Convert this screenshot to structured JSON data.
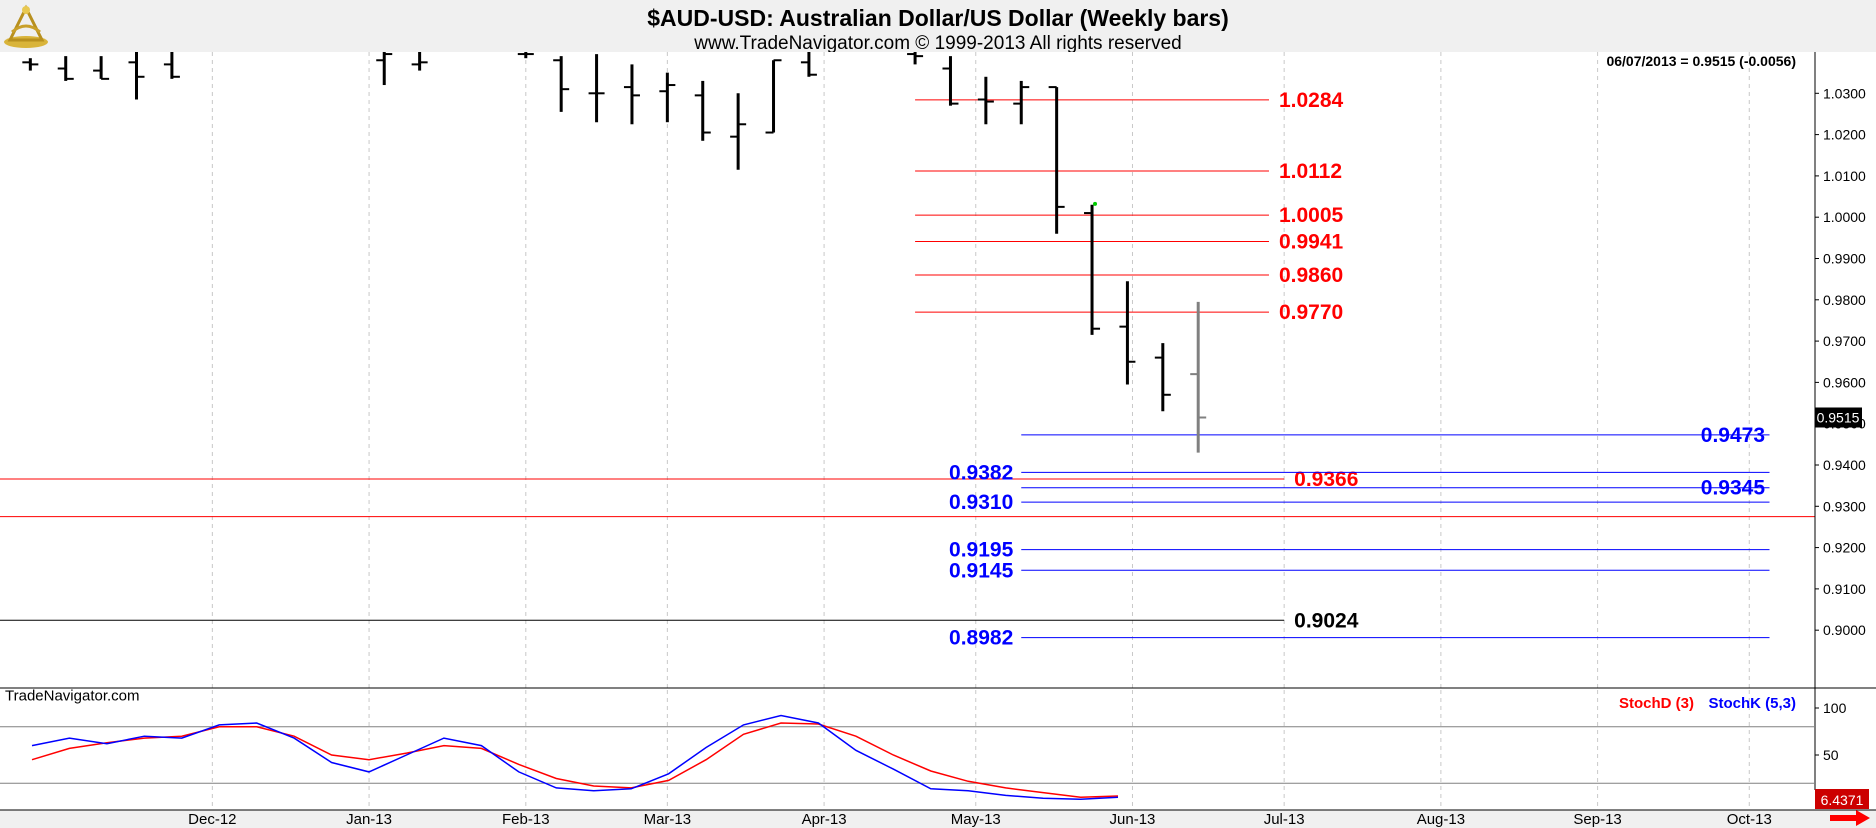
{
  "header": {
    "title": "$AUD-USD:  Australian Dollar/US Dollar  (Weekly bars)",
    "subtitle": "www.TradeNavigator.com © 1999-2013 All rights reserved",
    "date_readout": "06/07/2013 = 0.9515 (-0.0056)",
    "logo_icon": "sextant-logo-icon"
  },
  "watermark": "TradeNavigator.com",
  "colors": {
    "red": "#ff0000",
    "blue": "#0000ff",
    "black": "#000000",
    "gray": "#808080",
    "grid": "#c8c8c8",
    "axis_bg": "#f0f0f0"
  },
  "chart_data": [
    {
      "type": "bar",
      "title": "$AUD-USD:  Australian Dollar/US Dollar  (Weekly bars)",
      "ylim": [
        0.886,
        1.04
      ],
      "y_ticks": [
        "1.0300",
        "1.0200",
        "1.0100",
        "1.0000",
        "0.9900",
        "0.9800",
        "0.9700",
        "0.9600",
        "0.9500",
        "0.9400",
        "0.9300",
        "0.9200",
        "0.9100",
        "0.9000"
      ],
      "x_ticks": [
        "Dec-12",
        "Jan-13",
        "Feb-13",
        "Mar-13",
        "Apr-13",
        "May-13",
        "Jun-13",
        "Jul-13",
        "Aug-13",
        "Sep-13",
        "Oct-13"
      ],
      "x_tick_dates": [
        "2012-12-01",
        "2013-01-01",
        "2013-02-01",
        "2013-03-01",
        "2013-04-01",
        "2013-05-01",
        "2013-06-01",
        "2013-07-01",
        "2013-08-01",
        "2013-09-01",
        "2013-10-01"
      ],
      "x_range": [
        "2012-10-20",
        "2013-10-14"
      ],
      "last_price": "0.9515",
      "last_value": 0.9515,
      "ohlc": [
        {
          "date": "2012-10-26",
          "open": 1.0375,
          "high": 1.0385,
          "low": 1.0355,
          "close": 1.037
        },
        {
          "date": "2012-11-02",
          "open": 1.036,
          "high": 1.039,
          "low": 1.033,
          "close": 1.0335
        },
        {
          "date": "2012-11-09",
          "open": 1.0355,
          "high": 1.039,
          "low": 1.0335,
          "close": 1.0335
        },
        {
          "date": "2012-11-16",
          "open": 1.0375,
          "high": 1.04,
          "low": 1.0285,
          "close": 1.034
        },
        {
          "date": "2012-11-23",
          "open": 1.037,
          "high": 1.04,
          "low": 1.0335,
          "close": 1.034
        },
        {
          "date": "2013-01-04",
          "open": 1.038,
          "high": 1.04,
          "low": 1.032,
          "close": 1.0395
        },
        {
          "date": "2013-01-11",
          "open": 1.037,
          "high": 1.04,
          "low": 1.0355,
          "close": 1.0375
        },
        {
          "date": "2013-02-01",
          "open": 1.0395,
          "high": 1.04,
          "low": 1.0385,
          "close": 1.0395
        },
        {
          "date": "2013-02-08",
          "open": 1.038,
          "high": 1.039,
          "low": 1.0255,
          "close": 1.031
        },
        {
          "date": "2013-02-15",
          "open": 1.03,
          "high": 1.0395,
          "low": 1.023,
          "close": 1.03
        },
        {
          "date": "2013-02-22",
          "open": 1.0315,
          "high": 1.037,
          "low": 1.0225,
          "close": 1.0295
        },
        {
          "date": "2013-03-01",
          "open": 1.0305,
          "high": 1.035,
          "low": 1.023,
          "close": 1.032
        },
        {
          "date": "2013-03-08",
          "open": 1.0295,
          "high": 1.033,
          "low": 1.0185,
          "close": 1.0205
        },
        {
          "date": "2013-03-15",
          "open": 1.0195,
          "high": 1.03,
          "low": 1.0115,
          "close": 1.0225
        },
        {
          "date": "2013-03-22",
          "open": 1.0205,
          "high": 1.038,
          "low": 1.0205,
          "close": 1.038
        },
        {
          "date": "2013-03-29",
          "open": 1.0375,
          "high": 1.04,
          "low": 1.034,
          "close": 1.0345
        },
        {
          "date": "2013-04-19",
          "open": 1.0395,
          "high": 1.04,
          "low": 1.037,
          "close": 1.039
        },
        {
          "date": "2013-04-26",
          "open": 1.036,
          "high": 1.039,
          "low": 1.027,
          "close": 1.0275
        },
        {
          "date": "2013-05-03",
          "open": 1.0285,
          "high": 1.034,
          "low": 1.0225,
          "close": 1.028
        },
        {
          "date": "2013-05-10",
          "open": 1.0275,
          "high": 1.033,
          "low": 1.0225,
          "close": 1.0315
        },
        {
          "date": "2013-05-17",
          "open": 1.0315,
          "high": 1.0315,
          "low": 0.996,
          "close": 1.0025
        },
        {
          "date": "2013-05-24",
          "open": 1.001,
          "high": 1.003,
          "low": 0.9715,
          "close": 0.973
        },
        {
          "date": "2013-05-31",
          "open": 0.9735,
          "high": 0.9845,
          "low": 0.9595,
          "close": 0.965
        },
        {
          "date": "2013-06-07",
          "open": 0.966,
          "high": 0.9695,
          "low": 0.953,
          "close": 0.957
        }
      ],
      "current_bar": {
        "date": "2013-06-14",
        "open": 0.962,
        "high": 0.9795,
        "low": 0.943,
        "close": 0.9515
      },
      "current_bar_high_mark": {
        "date": "2013-05-24",
        "value": 1.0025
      },
      "levels": [
        {
          "value": 1.0284,
          "label": "1.0284",
          "color": "red",
          "from": "2013-04-19",
          "to": "2013-06-28",
          "label_side": "right"
        },
        {
          "value": 1.0112,
          "label": "1.0112",
          "color": "red",
          "from": "2013-04-19",
          "to": "2013-06-28",
          "label_side": "right"
        },
        {
          "value": 1.0005,
          "label": "1.0005",
          "color": "red",
          "from": "2013-04-19",
          "to": "2013-06-28",
          "label_side": "right"
        },
        {
          "value": 0.9941,
          "label": "0.9941",
          "color": "red",
          "from": "2013-04-19",
          "to": "2013-06-28",
          "label_side": "right"
        },
        {
          "value": 0.986,
          "label": "0.9860",
          "color": "red",
          "from": "2013-04-19",
          "to": "2013-06-28",
          "label_side": "right"
        },
        {
          "value": 0.977,
          "label": "0.9770",
          "color": "red",
          "from": "2013-04-19",
          "to": "2013-06-28",
          "label_side": "right"
        },
        {
          "value": 0.9366,
          "label": "0.9366",
          "color": "red",
          "from": "2012-10-20",
          "to": "2013-07-01",
          "label_side": "right"
        },
        {
          "value": 0.9275,
          "label": "",
          "color": "red",
          "from": "2012-10-20",
          "to": "2013-10-14",
          "label_side": "none"
        },
        {
          "value": 0.9024,
          "label": "0.9024",
          "color": "black",
          "from": "2012-10-20",
          "to": "2013-07-01",
          "label_side": "right"
        },
        {
          "value": 0.9473,
          "label": "0.9473",
          "color": "blue",
          "from": "2013-05-10",
          "to": "2013-10-05",
          "label_side": "far-right"
        },
        {
          "value": 0.9382,
          "label": "0.9382",
          "color": "blue",
          "from": "2013-05-10",
          "to": "2013-10-05",
          "label_side": "left"
        },
        {
          "value": 0.9345,
          "label": "0.9345",
          "color": "blue",
          "from": "2013-05-10",
          "to": "2013-10-05",
          "label_side": "far-right"
        },
        {
          "value": 0.931,
          "label": "0.9310",
          "color": "blue",
          "from": "2013-05-10",
          "to": "2013-10-05",
          "label_side": "left"
        },
        {
          "value": 0.9195,
          "label": "0.9195",
          "color": "blue",
          "from": "2013-05-10",
          "to": "2013-10-05",
          "label_side": "left"
        },
        {
          "value": 0.9145,
          "label": "0.9145",
          "color": "blue",
          "from": "2013-05-10",
          "to": "2013-10-05",
          "label_side": "left"
        },
        {
          "value": 0.8982,
          "label": "0.8982",
          "color": "blue",
          "from": "2013-05-10",
          "to": "2013-10-05",
          "label_side": "left"
        }
      ],
      "grid": "vertical-dashed"
    },
    {
      "type": "line",
      "ylim": [
        0,
        100
      ],
      "y_ticks": [
        "100",
        "50"
      ],
      "reference_lines": [
        80,
        20
      ],
      "last_value_label": "6.4371",
      "legend_placement": "top-right",
      "series": [
        {
          "name": "StochD (3)",
          "color": "red",
          "values": [
            {
              "date": "2012-10-26",
              "value": 45
            },
            {
              "date": "2012-11-09",
              "value": 57
            },
            {
              "date": "2012-11-23",
              "value": 63
            },
            {
              "date": "2012-12-07",
              "value": 68
            },
            {
              "date": "2012-12-21",
              "value": 70
            },
            {
              "date": "2013-01-04",
              "value": 80
            },
            {
              "date": "2013-01-18",
              "value": 80
            },
            {
              "date": "2013-02-01",
              "value": 70
            },
            {
              "date": "2013-02-15",
              "value": 50
            },
            {
              "date": "2013-03-01",
              "value": 45
            },
            {
              "date": "2013-03-15",
              "value": 52
            },
            {
              "date": "2013-03-29",
              "value": 60
            },
            {
              "date": "2013-04-12",
              "value": 57
            },
            {
              "date": "2013-04-26",
              "value": 40
            },
            {
              "date": "2013-05-10",
              "value": 25
            },
            {
              "date": "2013-05-24",
              "value": 17
            },
            {
              "date": "2013-06-07",
              "value": 15
            },
            {
              "date": "2013-06-21",
              "value": 23
            },
            {
              "date": "2013-07-05",
              "value": 45
            },
            {
              "date": "2013-07-19",
              "value": 72
            },
            {
              "date": "2013-08-02",
              "value": 84
            },
            {
              "date": "2013-08-16",
              "value": 83
            },
            {
              "date": "2013-08-30",
              "value": 70
            },
            {
              "date": "2013-09-13",
              "value": 50
            },
            {
              "date": "2013-09-27",
              "value": 33
            },
            {
              "date": "2013-10-11",
              "value": 22
            },
            {
              "date": "2013-10-25",
              "value": 15
            },
            {
              "date": "2013-11-08",
              "value": 10
            },
            {
              "date": "2013-11-22",
              "value": 5
            },
            {
              "date": "2013-12-06",
              "value": 6.4
            }
          ]
        },
        {
          "name": "StochK (5,3)",
          "color": "blue",
          "values": [
            {
              "date": "2012-10-26",
              "value": 60
            },
            {
              "date": "2012-11-09",
              "value": 68
            },
            {
              "date": "2012-11-23",
              "value": 62
            },
            {
              "date": "2012-12-07",
              "value": 70
            },
            {
              "date": "2012-12-21",
              "value": 68
            },
            {
              "date": "2013-01-04",
              "value": 82
            },
            {
              "date": "2013-01-18",
              "value": 84
            },
            {
              "date": "2013-02-01",
              "value": 68
            },
            {
              "date": "2013-02-15",
              "value": 42
            },
            {
              "date": "2013-03-01",
              "value": 32
            },
            {
              "date": "2013-03-15",
              "value": 50
            },
            {
              "date": "2013-03-29",
              "value": 68
            },
            {
              "date": "2013-04-12",
              "value": 60
            },
            {
              "date": "2013-04-26",
              "value": 32
            },
            {
              "date": "2013-05-10",
              "value": 15
            },
            {
              "date": "2013-05-24",
              "value": 12
            },
            {
              "date": "2013-06-07",
              "value": 14
            },
            {
              "date": "2013-06-21",
              "value": 30
            },
            {
              "date": "2013-07-05",
              "value": 58
            },
            {
              "date": "2013-07-19",
              "value": 82
            },
            {
              "date": "2013-08-02",
              "value": 92
            },
            {
              "date": "2013-08-16",
              "value": 84
            },
            {
              "date": "2013-08-30",
              "value": 55
            },
            {
              "date": "2013-09-13",
              "value": 35
            },
            {
              "date": "2013-09-27",
              "value": 14
            },
            {
              "date": "2013-10-11",
              "value": 12
            },
            {
              "date": "2013-10-25",
              "value": 7
            },
            {
              "date": "2013-11-08",
              "value": 4
            },
            {
              "date": "2013-11-22",
              "value": 3
            },
            {
              "date": "2013-12-06",
              "value": 5
            }
          ]
        }
      ]
    }
  ]
}
